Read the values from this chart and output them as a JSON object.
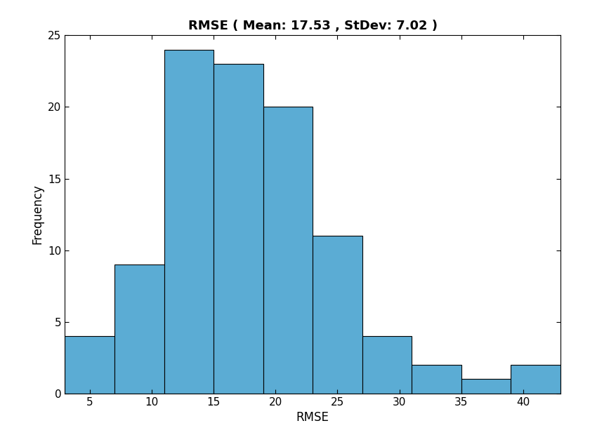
{
  "title": "RMSE ( Mean: 17.53 , StDev: 7.02 )",
  "xlabel": "RMSE",
  "ylabel": "Frequency",
  "bar_color": "#5bacd4",
  "edge_color": "#000000",
  "counts": [
    4,
    9,
    24,
    23,
    20,
    11,
    4,
    2,
    1,
    2
  ],
  "bin_edges": [
    3,
    7,
    11,
    15,
    19,
    23,
    27,
    31,
    35,
    39,
    43
  ],
  "xlim": [
    3,
    43
  ],
  "ylim": [
    0,
    25
  ],
  "xticks": [
    5,
    10,
    15,
    20,
    25,
    30,
    35,
    40
  ],
  "yticks": [
    0,
    5,
    10,
    15,
    20,
    25
  ],
  "title_fontsize": 13,
  "label_fontsize": 12,
  "tick_fontsize": 11,
  "figwidth": 8.4,
  "figheight": 6.3
}
